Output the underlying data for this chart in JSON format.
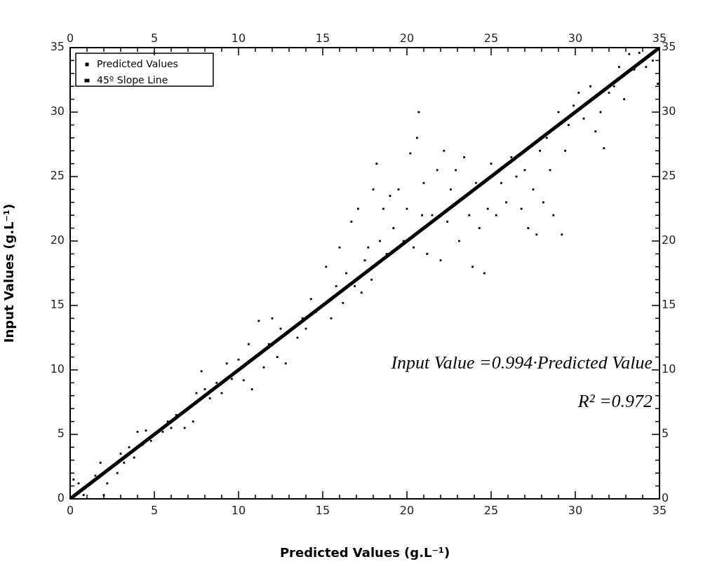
{
  "chart_data": {
    "type": "scatter",
    "xlabel": "Predicted Values (g.L⁻¹)",
    "ylabel": "Input Values (g.L⁻¹)",
    "annotations": [
      "Input Value =0.994·Predicted Value",
      "R² =0.972"
    ],
    "legend": "top left",
    "grid": false,
    "xlim": [
      0,
      35
    ],
    "ylim": [
      0,
      35
    ],
    "x2lim": [
      0,
      35
    ],
    "y2lim": [
      0,
      35
    ],
    "xticks": [
      0,
      {
        "value": 1,
        "label": null
      },
      {
        "value": 2,
        "label": null
      },
      {
        "value": 3,
        "label": null
      },
      {
        "value": 4,
        "label": null
      },
      5,
      {
        "value": 6,
        "label": null
      },
      {
        "value": 7,
        "label": null
      },
      {
        "value": 8,
        "label": null
      },
      {
        "value": 9,
        "label": null
      },
      10,
      {
        "value": 11,
        "label": null
      },
      {
        "value": 12,
        "label": null
      },
      {
        "value": 13,
        "label": null
      },
      {
        "value": 14,
        "label": null
      },
      15,
      {
        "value": 16,
        "label": null
      },
      {
        "value": 17,
        "label": null
      },
      {
        "value": 18,
        "label": null
      },
      {
        "value": 19,
        "label": null
      },
      20,
      {
        "value": 21,
        "label": null
      },
      {
        "value": 22,
        "label": null
      },
      {
        "value": 23,
        "label": null
      },
      {
        "value": 24,
        "label": null
      },
      25,
      {
        "value": 26,
        "label": null
      },
      {
        "value": 27,
        "label": null
      },
      {
        "value": 28,
        "label": null
      },
      {
        "value": 29,
        "label": null
      },
      30,
      {
        "value": 31,
        "label": null
      },
      {
        "value": 32,
        "label": null
      },
      {
        "value": 33,
        "label": null
      },
      {
        "value": 34,
        "label": null
      },
      35
    ],
    "x2ticks": [
      0,
      {
        "value": 1,
        "label": null
      },
      {
        "value": 2,
        "label": null
      },
      {
        "value": 3,
        "label": null
      },
      {
        "value": 4,
        "label": null
      },
      5,
      {
        "value": 6,
        "label": null
      },
      {
        "value": 7,
        "label": null
      },
      {
        "value": 8,
        "label": null
      },
      {
        "value": 9,
        "label": null
      },
      10,
      {
        "value": 11,
        "label": null
      },
      {
        "value": 12,
        "label": null
      },
      {
        "value": 13,
        "label": null
      },
      {
        "value": 14,
        "label": null
      },
      15,
      {
        "value": 16,
        "label": null
      },
      {
        "value": 17,
        "label": null
      },
      {
        "value": 18,
        "label": null
      },
      {
        "value": 19,
        "label": null
      },
      20,
      {
        "value": 21,
        "label": null
      },
      {
        "value": 22,
        "label": null
      },
      {
        "value": 23,
        "label": null
      },
      {
        "value": 24,
        "label": null
      },
      25,
      {
        "value": 26,
        "label": null
      },
      {
        "value": 27,
        "label": null
      },
      {
        "value": 28,
        "label": null
      },
      {
        "value": 29,
        "label": null
      },
      30,
      {
        "value": 31,
        "label": null
      },
      {
        "value": 32,
        "label": null
      },
      {
        "value": 33,
        "label": null
      },
      {
        "value": 34,
        "label": null
      },
      35
    ],
    "yticks": [
      0,
      {
        "value": 1,
        "label": null
      },
      {
        "value": 2,
        "label": null
      },
      {
        "value": 3,
        "label": null
      },
      {
        "value": 4,
        "label": null
      },
      5,
      {
        "value": 6,
        "label": null
      },
      {
        "value": 7,
        "label": null
      },
      {
        "value": 8,
        "label": null
      },
      {
        "value": 9,
        "label": null
      },
      10,
      {
        "value": 11,
        "label": null
      },
      {
        "value": 12,
        "label": null
      },
      {
        "value": 13,
        "label": null
      },
      {
        "value": 14,
        "label": null
      },
      15,
      {
        "value": 16,
        "label": null
      },
      {
        "value": 17,
        "label": null
      },
      {
        "value": 18,
        "label": null
      },
      {
        "value": 19,
        "label": null
      },
      20,
      {
        "value": 21,
        "label": null
      },
      {
        "value": 22,
        "label": null
      },
      {
        "value": 23,
        "label": null
      },
      {
        "value": 24,
        "label": null
      },
      25,
      {
        "value": 26,
        "label": null
      },
      {
        "value": 27,
        "label": null
      },
      {
        "value": 28,
        "label": null
      },
      {
        "value": 29,
        "label": null
      },
      30,
      {
        "value": 31,
        "label": null
      },
      {
        "value": 32,
        "label": null
      },
      {
        "value": 33,
        "label": null
      },
      {
        "value": 34,
        "label": null
      },
      35
    ],
    "y2ticks": [
      0,
      {
        "value": 1,
        "label": null
      },
      {
        "value": 2,
        "label": null
      },
      {
        "value": 3,
        "label": null
      },
      {
        "value": 4,
        "label": null
      },
      5,
      {
        "value": 6,
        "label": null
      },
      {
        "value": 7,
        "label": null
      },
      {
        "value": 8,
        "label": null
      },
      {
        "value": 9,
        "label": null
      },
      10,
      {
        "value": 11,
        "label": null
      },
      {
        "value": 12,
        "label": null
      },
      {
        "value": 13,
        "label": null
      },
      {
        "value": 14,
        "label": null
      },
      15,
      {
        "value": 16,
        "label": null
      },
      {
        "value": 17,
        "label": null
      },
      {
        "value": 18,
        "label": null
      },
      {
        "value": 19,
        "label": null
      },
      20,
      {
        "value": 21,
        "label": null
      },
      {
        "value": 22,
        "label": null
      },
      {
        "value": 23,
        "label": null
      },
      {
        "value": 24,
        "label": null
      },
      25,
      {
        "value": 26,
        "label": null
      },
      {
        "value": 27,
        "label": null
      },
      {
        "value": 28,
        "label": null
      },
      {
        "value": 29,
        "label": null
      },
      30,
      {
        "value": 31,
        "label": null
      },
      {
        "value": 32,
        "label": null
      },
      {
        "value": 33,
        "label": null
      },
      {
        "value": 34,
        "label": null
      },
      35
    ],
    "series": [
      {
        "name": "Predicted Values",
        "type": "scatter",
        "marker": "square",
        "color": "#000000",
        "x": [
          0.2,
          0.5,
          0.8,
          1.5,
          1.8,
          2,
          2.2,
          2.8,
          3,
          3.2,
          3.5,
          3.8,
          4,
          4.3,
          4.5,
          4.8,
          5.5,
          5.8,
          6,
          6.3,
          6.8,
          7.3,
          7.5,
          7.8,
          8,
          8.3,
          8.7,
          9,
          9.3,
          9.6,
          10,
          10.3,
          10.6,
          10.8,
          11.2,
          11.5,
          11.8,
          12,
          12.3,
          12.5,
          12.8,
          13.5,
          13.8,
          14,
          14.3,
          14.6,
          15.2,
          15.5,
          15.8,
          16,
          16.2,
          16.4,
          16.7,
          16.9,
          17.1,
          17.3,
          17.5,
          17.7,
          17.9,
          18,
          18.2,
          18.4,
          18.6,
          18.8,
          19,
          19.2,
          19.5,
          19.8,
          20,
          20.2,
          20.4,
          20.6,
          20.7,
          20.9,
          21,
          21.2,
          21.5,
          21.8,
          22,
          22.2,
          22.4,
          22.6,
          22.9,
          23.1,
          23.4,
          23.7,
          23.9,
          24.1,
          24.3,
          24.6,
          24.8,
          25,
          25.3,
          25.6,
          25.9,
          26.2,
          26.5,
          26.8,
          27,
          27.2,
          27.5,
          27.7,
          27.9,
          28.1,
          28.3,
          28.5,
          28.7,
          29,
          29.2,
          29.4,
          29.6,
          29.9,
          30.2,
          30.5,
          30.9,
          31.2,
          31.5,
          31.7,
          32,
          32.3,
          32.6,
          32.9,
          33.2,
          33.5,
          33.8,
          34.2,
          34.6,
          34.9
        ],
        "values": [
          1.5,
          1.2,
          0.3,
          1.8,
          2.8,
          0.3,
          1.2,
          2,
          3.5,
          2.8,
          4,
          3.2,
          5.2,
          4.2,
          5.3,
          4.5,
          5.2,
          6,
          5.5,
          6.5,
          5.5,
          6,
          8.2,
          9.9,
          8.5,
          7.8,
          9,
          8.2,
          10.5,
          9.3,
          10.8,
          9.2,
          12,
          8.5,
          13.8,
          10.2,
          12,
          14,
          11,
          13.2,
          10.5,
          12.5,
          14,
          13.2,
          15.5,
          14.5,
          18,
          14,
          16.5,
          19.5,
          15.2,
          17.5,
          21.5,
          16.5,
          22.5,
          16,
          18.5,
          19.5,
          17,
          24,
          26,
          20,
          22.5,
          19,
          23.5,
          21,
          24,
          20,
          22.5,
          26.8,
          19.5,
          28,
          30,
          22,
          24.5,
          19,
          22,
          25.5,
          18.5,
          27,
          21.5,
          24,
          25.5,
          20,
          26.5,
          22,
          18,
          24.5,
          21,
          17.5,
          22.5,
          26,
          22,
          24.5,
          23,
          26.5,
          25,
          22.5,
          25.5,
          21,
          24,
          20.5,
          27,
          23,
          28,
          25.5,
          22,
          30,
          20.5,
          27,
          29,
          30.5,
          31.5,
          29.5,
          32,
          28.5,
          30,
          27.2,
          31.5,
          32,
          33.5,
          31,
          34.5,
          33.3,
          34.6,
          33.5,
          34,
          32.2
        ]
      },
      {
        "name": "45º Slope Line",
        "type": "line",
        "marker": "none",
        "line_style": "solid",
        "color": "#000000",
        "x": [
          0,
          35
        ],
        "values": [
          0,
          35
        ]
      }
    ]
  }
}
